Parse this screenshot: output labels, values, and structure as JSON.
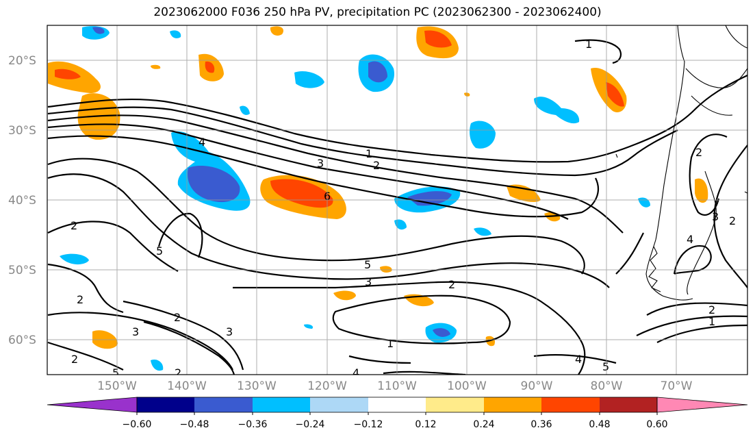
{
  "title": "2023062000 F036 250 hPa PV, precipitation PC (2023062300 - 2023062400)",
  "lat_labels": [
    "20°S",
    "30°S",
    "40°S",
    "50°S",
    "60°S"
  ],
  "lon_labels": [
    "150°W",
    "140°W",
    "130°W",
    "120°W",
    "110°W",
    "100°W",
    "90°W",
    "80°W",
    "70°W"
  ],
  "colorbar": {
    "tick_labels": [
      "−0.60",
      "−0.48",
      "−0.36",
      "−0.24",
      "−0.12",
      "0.12",
      "0.24",
      "0.36",
      "0.48",
      "0.60"
    ],
    "colors": [
      "#9932cc",
      "#00008b",
      "#3a5bd0",
      "#00bfff",
      "#add8f6",
      "#ffffff",
      "#ffeb8a",
      "#ffa500",
      "#ff4500",
      "#b22222",
      "#ff88b4"
    ]
  },
  "contour_labels": [
    "1",
    "2",
    "3",
    "4",
    "5",
    "6",
    "1",
    "2",
    "3",
    "5",
    "2",
    "2",
    "3",
    "3",
    "2",
    "1",
    "4",
    "5",
    "2",
    "1",
    "2",
    "5",
    "2",
    "4",
    "4",
    "3",
    "2",
    "2"
  ]
}
